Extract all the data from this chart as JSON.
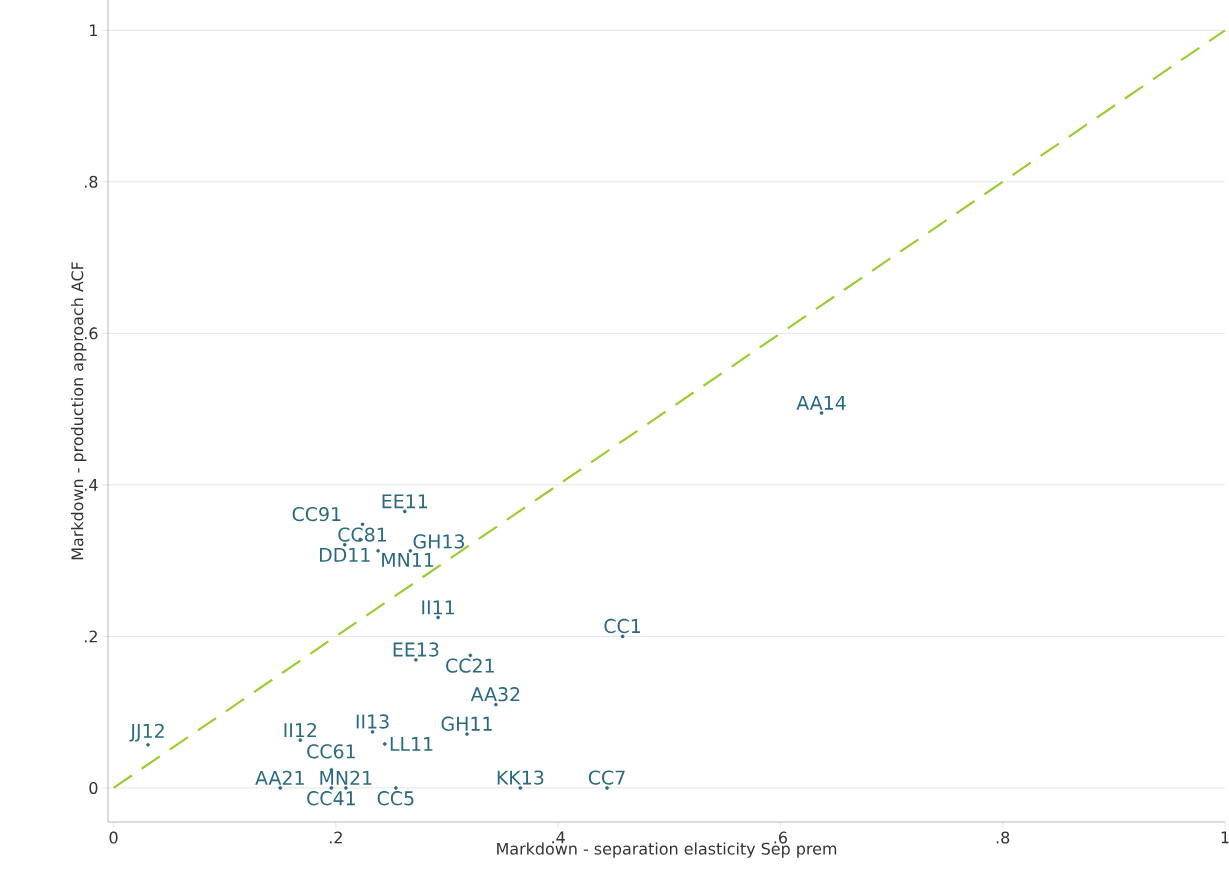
{
  "chart_data": {
    "type": "scatter",
    "xlabel": "Markdown - separation elasticity Sep prem",
    "ylabel": "Markdown - production approach ACF",
    "xlim": [
      -0.005,
      1.0
    ],
    "ylim": [
      -0.045,
      1.04
    ],
    "xticks": [
      0,
      {
        "value": 0.2,
        "label": ".2"
      },
      {
        "value": 0.4,
        "label": ".4"
      },
      {
        "value": 0.6,
        "label": ".6"
      },
      {
        "value": 0.8,
        "label": ".8"
      },
      1
    ],
    "yticks": [
      0,
      {
        "value": 0.2,
        "label": ".2"
      },
      {
        "value": 0.4,
        "label": ".4"
      },
      {
        "value": 0.6,
        "label": ".6"
      },
      {
        "value": 0.8,
        "label": ".8"
      },
      1
    ],
    "grid": "y",
    "series": [
      {
        "type": "line",
        "color": "#9acd32",
        "line_style": "dashed",
        "marker": "none",
        "x": [
          0,
          1
        ],
        "values": [
          0,
          1
        ]
      },
      {
        "color": "#2a6a80",
        "marker": "circle",
        "x": [
          0.031,
          0.168,
          0.15,
          0.196,
          0.209,
          0.254,
          0.196,
          0.233,
          0.244,
          0.318,
          0.344,
          0.366,
          0.444,
          0.272,
          0.321,
          0.292,
          0.458,
          0.637,
          0.262,
          0.224,
          0.208,
          0.222,
          0.238,
          0.267
        ],
        "values": [
          0.057,
          0.063,
          0,
          0,
          0,
          0,
          0.024,
          0.074,
          0.058,
          0.071,
          0.11,
          0,
          0,
          0.169,
          0.175,
          0.225,
          0.2,
          0.495,
          0.365,
          0.348,
          0.321,
          0.328,
          0.313,
          0.313
        ],
        "value_labels": [
          "JJ12",
          "II12",
          "AA21",
          "CC41",
          "MN21",
          "CC5",
          "CC61",
          "II13",
          "LL11",
          "GH11",
          "AA32",
          "KK13",
          "CC7",
          "EE13",
          "CC21",
          "II11",
          "CC1",
          "AA14",
          "EE11",
          "CC81",
          "DD11",
          "CC91",
          "MN11",
          "GH13"
        ]
      }
    ]
  }
}
